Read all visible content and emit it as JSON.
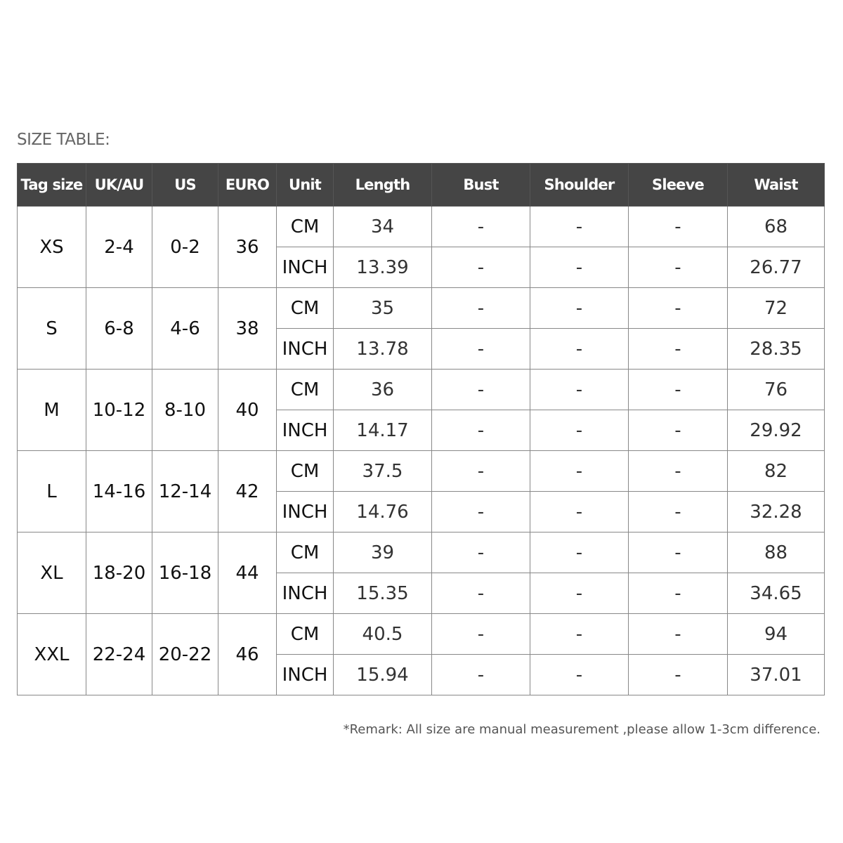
{
  "title": "SIZE TABLE:",
  "headers": [
    "Tag size",
    "UK/AU",
    "US",
    "EURO",
    "Unit",
    "Length",
    "Bust",
    "Shoulder",
    "Sleeve",
    "Waist"
  ],
  "units": [
    "CM",
    "INCH"
  ],
  "rows": [
    {
      "tag": "XS",
      "uk": "2-4",
      "us": "0-2",
      "euro": "36",
      "cm": [
        "34",
        "-",
        "-",
        "-",
        "68"
      ],
      "inch": [
        "13.39",
        "-",
        "-",
        "-",
        "26.77"
      ]
    },
    {
      "tag": "S",
      "uk": "6-8",
      "us": "4-6",
      "euro": "38",
      "cm": [
        "35",
        "-",
        "-",
        "-",
        "72"
      ],
      "inch": [
        "13.78",
        "-",
        "-",
        "-",
        "28.35"
      ]
    },
    {
      "tag": "M",
      "uk": "10-12",
      "us": "8-10",
      "euro": "40",
      "cm": [
        "36",
        "-",
        "-",
        "-",
        "76"
      ],
      "inch": [
        "14.17",
        "-",
        "-",
        "-",
        "29.92"
      ]
    },
    {
      "tag": "L",
      "uk": "14-16",
      "us": "12-14",
      "euro": "42",
      "cm": [
        "37.5",
        "-",
        "-",
        "-",
        "82"
      ],
      "inch": [
        "14.76",
        "-",
        "-",
        "-",
        "32.28"
      ]
    },
    {
      "tag": "XL",
      "uk": "18-20",
      "us": "16-18",
      "euro": "44",
      "cm": [
        "39",
        "-",
        "-",
        "-",
        "88"
      ],
      "inch": [
        "15.35",
        "-",
        "-",
        "-",
        "34.65"
      ]
    },
    {
      "tag": "XXL",
      "uk": "22-24",
      "us": "20-22",
      "euro": "46",
      "cm": [
        "40.5",
        "-",
        "-",
        "-",
        "94"
      ],
      "inch": [
        "15.94",
        "-",
        "-",
        "-",
        "37.01"
      ]
    }
  ],
  "remark": "*Remark: All size are manual measurement ,please allow 1-3cm difference.",
  "colors": {
    "header_bg": "#454545",
    "header_text": "#ffffff"
  }
}
